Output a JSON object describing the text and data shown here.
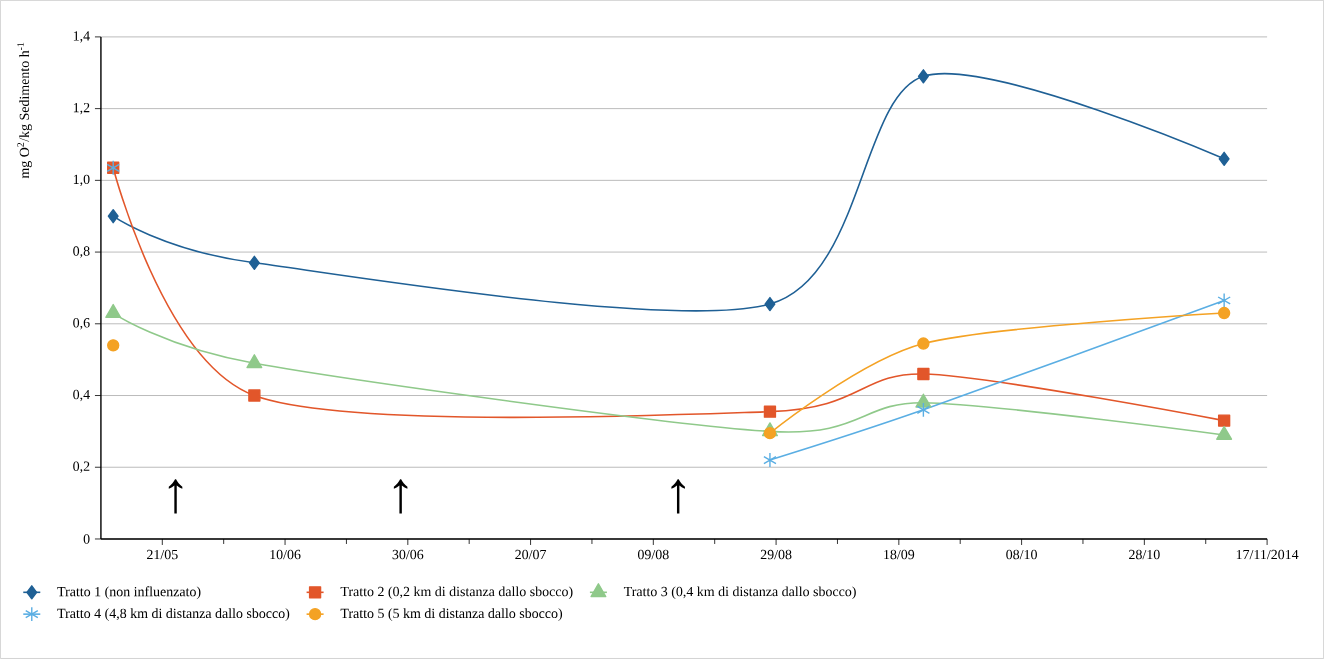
{
  "chart_data": {
    "type": "line",
    "ylabel": "mg O$^{2}$/kg Sedimento h$^{-1}$",
    "x": [
      "2014-05-13",
      "2014-06-05",
      "2014-08-28",
      "2014-09-22",
      "2014-11-10"
    ],
    "xlim": [
      "2014-05-11",
      "2014-11-17"
    ],
    "xticks": [
      {
        "value": "2014-05-21",
        "label": "21/05"
      },
      {
        "value": "2014-06-10",
        "label": "10/06"
      },
      {
        "value": "2014-06-30",
        "label": "30/06"
      },
      {
        "value": "2014-07-20",
        "label": "20/07"
      },
      {
        "value": "2014-08-09",
        "label": "09/08"
      },
      {
        "value": "2014-08-29",
        "label": "29/08"
      },
      {
        "value": "2014-09-18",
        "label": "18/09"
      },
      {
        "value": "2014-10-08",
        "label": "08/10"
      },
      {
        "value": "2014-10-28",
        "label": "28/10"
      },
      {
        "value": "2014-11-17",
        "label": "17/11/2014"
      }
    ],
    "ylim": [
      0,
      1.4
    ],
    "yticks": [
      0,
      {
        "value": 0.2,
        "label": "0,2"
      },
      {
        "value": 0.4,
        "label": "0,4"
      },
      {
        "value": 0.6,
        "label": "0,6"
      },
      {
        "value": 0.8,
        "label": "0,8"
      },
      {
        "value": 1.0,
        "label": "1,0"
      },
      {
        "value": 1.2,
        "label": "1,2"
      },
      {
        "value": 1.4,
        "label": "1,4"
      }
    ],
    "grid": "y",
    "legend": "bottom",
    "series": [
      {
        "name": "Tratto 1 (non influenzato)",
        "color": "#1f6095",
        "marker": "diamond",
        "values": [
          0.9,
          0.77,
          0.655,
          1.29,
          1.06
        ]
      },
      {
        "name": "Tratto 2 (0,2 km di distanza dallo sbocco)",
        "color": "#e2562a",
        "marker": "square",
        "values": [
          1.035,
          0.4,
          0.355,
          0.46,
          0.33
        ]
      },
      {
        "name": "Tratto 3 (0,4 km di distanza dallo sbocco)",
        "color": "#8fc98a",
        "marker": "triangle",
        "values": [
          0.63,
          0.49,
          0.3,
          0.38,
          0.29
        ]
      },
      {
        "name": "Tratto 4 (4,8 km di distanza dallo sbocco)",
        "color": "#5aaee3",
        "marker": "cross",
        "values": [
          1.035,
          null,
          0.22,
          0.36,
          0.665
        ]
      },
      {
        "name": "Tratto 5 (5 km di distanza dallo sbocco)",
        "color": "#f4a224",
        "marker": "circle",
        "values": [
          0.54,
          null,
          0.295,
          0.545,
          0.63
        ]
      }
    ],
    "annotations": [
      "↑",
      "↑",
      "↑"
    ]
  }
}
